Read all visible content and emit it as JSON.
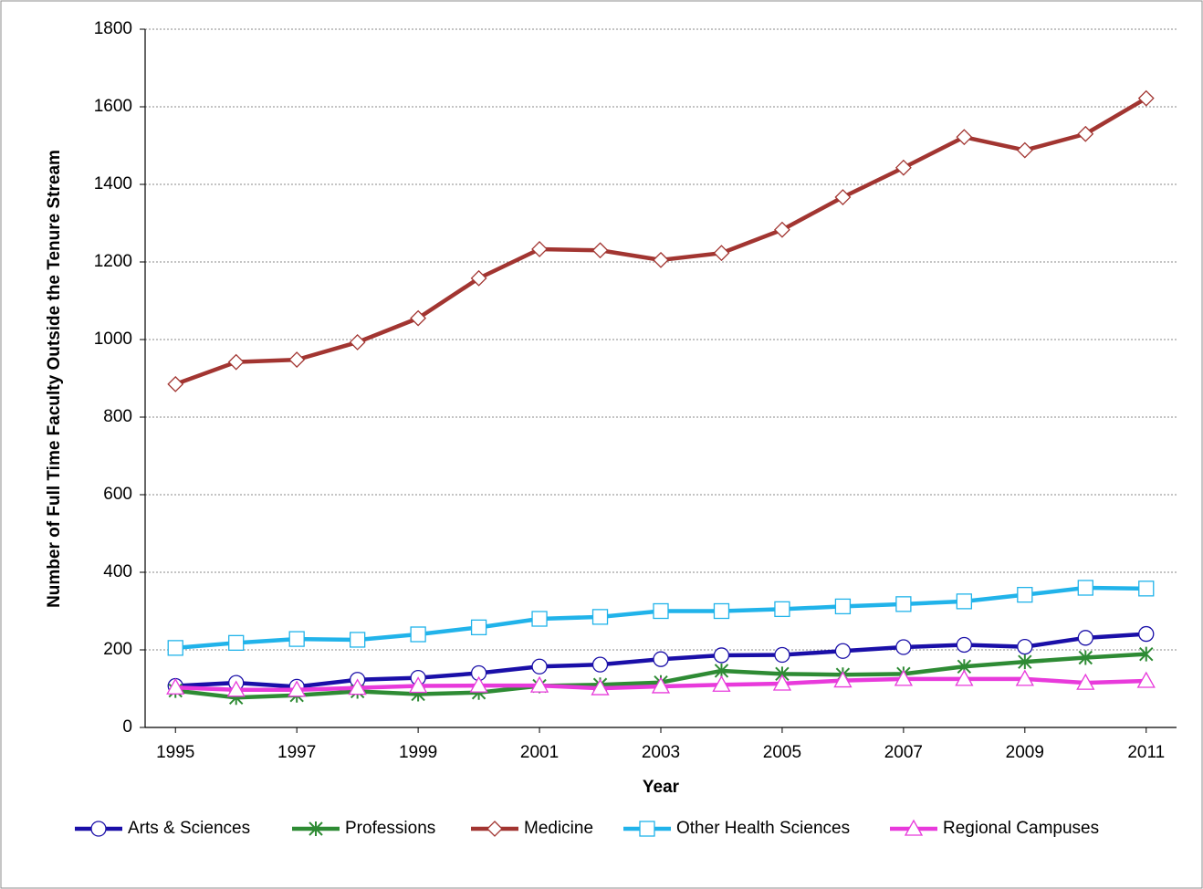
{
  "chart_data": {
    "type": "line",
    "y_label": "Number of Full Time Faculty Outside the Tenure Stream",
    "x_label": "Year",
    "x": [
      1995,
      1996,
      1997,
      1998,
      1999,
      2000,
      2001,
      2002,
      2003,
      2004,
      2005,
      2006,
      2007,
      2008,
      2009,
      2010,
      2011
    ],
    "xlim": [
      1994.5,
      2011.5
    ],
    "xticks": [
      1995,
      1997,
      1999,
      2001,
      2003,
      2005,
      2007,
      2009,
      2011
    ],
    "ylim": [
      0,
      1800
    ],
    "yticks": [
      0,
      200,
      400,
      600,
      800,
      1000,
      1200,
      1400,
      1600,
      1800
    ],
    "grid": true,
    "legend": "bottom",
    "series": [
      {
        "name": "Arts & Sciences",
        "color": "#1a0fa8",
        "marker": "circle",
        "values": [
          107,
          115,
          105,
          123,
          128,
          140,
          157,
          162,
          176,
          186,
          187,
          197,
          207,
          213,
          208,
          231,
          241
        ]
      },
      {
        "name": "Professions",
        "color": "#2e8b34",
        "marker": "star",
        "values": [
          95,
          77,
          83,
          93,
          86,
          90,
          107,
          110,
          116,
          146,
          138,
          136,
          138,
          157,
          169,
          180,
          189
        ]
      },
      {
        "name": "Medicine",
        "color": "#a23531",
        "marker": "diamond",
        "values": [
          885,
          942,
          948,
          993,
          1055,
          1158,
          1233,
          1230,
          1205,
          1223,
          1283,
          1367,
          1443,
          1522,
          1488,
          1530,
          1622
        ]
      },
      {
        "name": "Other Health Sciences",
        "color": "#21b3ea",
        "marker": "square",
        "values": [
          205,
          218,
          228,
          226,
          240,
          258,
          280,
          285,
          300,
          300,
          305,
          312,
          318,
          325,
          342,
          360,
          358
        ]
      },
      {
        "name": "Regional Campuses",
        "color": "#e83adb",
        "marker": "triangle",
        "values": [
          103,
          97,
          97,
          102,
          107,
          108,
          108,
          101,
          106,
          110,
          113,
          121,
          125,
          125,
          125,
          115,
          120
        ]
      }
    ]
  }
}
